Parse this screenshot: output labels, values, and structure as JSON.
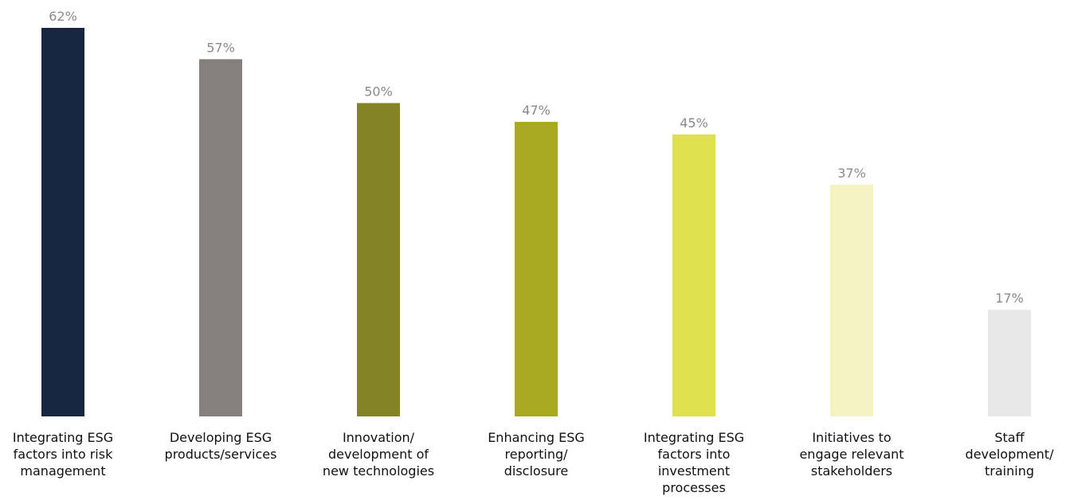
{
  "chart_data": {
    "type": "bar",
    "title": "",
    "xlabel": "",
    "ylabel": "",
    "ylim": [
      0,
      62
    ],
    "grid": false,
    "legend": "none",
    "value_suffix": "%",
    "categories": [
      [
        "Integrating ESG",
        "factors into risk",
        "management"
      ],
      [
        "Developing ESG",
        "products/services"
      ],
      [
        "Innovation/",
        "development of",
        "new technologies"
      ],
      [
        "Enhancing ESG",
        "reporting/",
        "disclosure"
      ],
      [
        "Integrating ESG",
        "factors into",
        "investment",
        "processes"
      ],
      [
        "Initiatives to",
        "engage relevant",
        "stakeholders"
      ],
      [
        "Staff",
        "development/",
        "training"
      ]
    ],
    "values": [
      62,
      57,
      50,
      47,
      45,
      37,
      17
    ],
    "value_labels": [
      "62%",
      "57%",
      "50%",
      "47%",
      "45%",
      "37%",
      "17%"
    ],
    "colors": [
      "#182641",
      "#857f7d",
      "#848426",
      "#aba920",
      "#dfe04e",
      "#f6f3c3",
      "#e8e8e8"
    ]
  }
}
